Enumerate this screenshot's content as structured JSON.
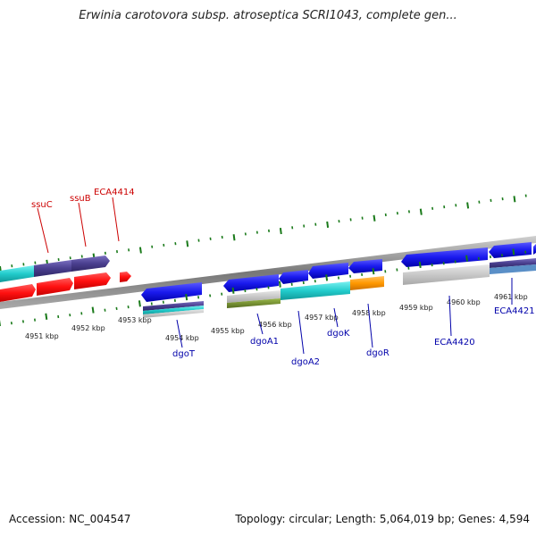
{
  "header": {
    "title": "Erwinia carotovora subsp. atroseptica SCRI1043, complete gen..."
  },
  "footer": {
    "accession": "Accession: NC_004547",
    "summary": "Topology: circular; Length: 5,064,019 bp; Genes: 4,594"
  },
  "scale": {
    "ticks": [
      "4951 kbp",
      "4952 kbp",
      "4953 kbp",
      "4954 kbp",
      "4955 kbp",
      "4956 kbp",
      "4957 kbp",
      "4958 kbp",
      "4959 kbp",
      "4960 kbp",
      "4961 kbp"
    ]
  },
  "genes": [
    {
      "name": "ssuC",
      "strand": "forward",
      "color": "#cc0000"
    },
    {
      "name": "ssuB",
      "strand": "forward",
      "color": "#cc0000"
    },
    {
      "name": "ECA4414",
      "strand": "forward",
      "color": "#cc0000"
    },
    {
      "name": "dgoT",
      "strand": "reverse",
      "color": "#0000aa"
    },
    {
      "name": "dgoA1",
      "strand": "reverse",
      "color": "#0000aa"
    },
    {
      "name": "dgoA2",
      "strand": "reverse",
      "color": "#0000aa"
    },
    {
      "name": "dgoK",
      "strand": "reverse",
      "color": "#0000aa"
    },
    {
      "name": "dgoR",
      "strand": "reverse",
      "color": "#0000aa"
    },
    {
      "name": "ECA4420",
      "strand": "reverse",
      "color": "#0000aa"
    },
    {
      "name": "ECA4421",
      "strand": "reverse",
      "color": "#0000aa"
    }
  ],
  "colors": {
    "forward_gene": "#ff0000",
    "reverse_gene": "#1a1aee",
    "backbone": "#888888",
    "tick": "#1a7a1a",
    "cyan_feature": "#22cccc",
    "purple_feature": "#4a3f8f",
    "orange_feature": "#ff9900",
    "olive_feature": "#6b8e23",
    "grey_feature": "#c8c8c8"
  }
}
